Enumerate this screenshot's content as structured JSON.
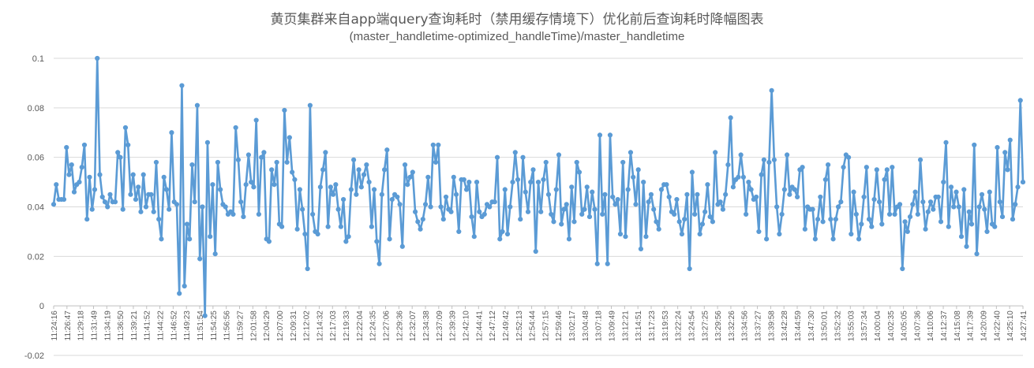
{
  "chart_data": {
    "type": "line",
    "title": "黄页集群来自app端query查询耗时（禁用缓存情境下）优化前后查询耗时降幅图表",
    "subtitle": "(master_handletime-optimized_handleTime)/master_handletime",
    "xlabel": "",
    "ylabel": "",
    "ylim": [
      -0.02,
      0.1
    ],
    "yticks": [
      "-0.02",
      "0",
      "0.02",
      "0.04",
      "0.06",
      "0.08",
      "0.1"
    ],
    "grid": true,
    "legend": "none",
    "series_color": "#5B9BD5",
    "x_tick_labels": [
      "11:24:16",
      "11:26:47",
      "11:29:18",
      "11:31:49",
      "11:34:19",
      "11:36:50",
      "11:39:21",
      "11:41:52",
      "11:44:22",
      "11:46:52",
      "11:49:23",
      "11:51:54",
      "11:54:25",
      "11:56:56",
      "11:59:27",
      "12:01:58",
      "12:04:29",
      "12:07:00",
      "12:09:31",
      "12:12:02",
      "12:14:32",
      "12:17:03",
      "12:19:33",
      "12:22:04",
      "12:24:35",
      "12:27:06",
      "12:29:36",
      "12:32:07",
      "12:34:38",
      "12:37:09",
      "12:39:39",
      "12:42:10",
      "12:44:41",
      "12:47:12",
      "12:49:42",
      "12:52:13",
      "12:54:44",
      "12:57:15",
      "12:59:46",
      "13:02:17",
      "13:04:48",
      "13:07:18",
      "13:09:49",
      "13:12:21",
      "13:14:51",
      "13:17:23",
      "13:19:53",
      "13:22:24",
      "13:24:54",
      "13:27:25",
      "13:29:56",
      "13:32:26",
      "13:34:56",
      "13:37:27",
      "13:39:58",
      "13:42:28",
      "13:44:59",
      "13:47:30",
      "13:50:01",
      "13:52:32",
      "13:55:03",
      "13:57:34",
      "14:00:04",
      "14:02:35",
      "14:05:05",
      "14:07:36",
      "14:10:06",
      "14:12:37",
      "14:15:08",
      "14:17:39",
      "14:20:09",
      "14:22:40",
      "14:25:10",
      "14:27:41"
    ],
    "values": [
      0.041,
      0.049,
      0.043,
      0.043,
      0.043,
      0.064,
      0.053,
      0.057,
      0.046,
      0.049,
      0.05,
      0.056,
      0.065,
      0.035,
      0.052,
      0.039,
      0.047,
      0.1,
      0.053,
      0.044,
      0.042,
      0.04,
      0.045,
      0.042,
      0.042,
      0.062,
      0.06,
      0.039,
      0.072,
      0.065,
      0.045,
      0.053,
      0.043,
      0.048,
      0.038,
      0.053,
      0.04,
      0.045,
      0.045,
      0.038,
      0.058,
      0.035,
      0.027,
      0.052,
      0.047,
      0.039,
      0.07,
      0.042,
      0.041,
      0.005,
      0.089,
      0.008,
      0.033,
      0.027,
      0.057,
      0.042,
      0.081,
      0.019,
      0.04,
      -0.004,
      0.066,
      0.028,
      0.049,
      0.021,
      0.058,
      0.047,
      0.041,
      0.04,
      0.037,
      0.038,
      0.037,
      0.072,
      0.059,
      0.042,
      0.036,
      0.049,
      0.061,
      0.05,
      0.048,
      0.075,
      0.037,
      0.06,
      0.062,
      0.027,
      0.026,
      0.055,
      0.049,
      0.058,
      0.033,
      0.032,
      0.079,
      0.058,
      0.068,
      0.054,
      0.051,
      0.031,
      0.047,
      0.039,
      0.029,
      0.015,
      0.081,
      0.037,
      0.03,
      0.029,
      0.048,
      0.055,
      0.062,
      0.032,
      0.048,
      0.045,
      0.049,
      0.039,
      0.032,
      0.043,
      0.026,
      0.028,
      0.047,
      0.059,
      0.045,
      0.055,
      0.048,
      0.053,
      0.057,
      0.05,
      0.032,
      0.047,
      0.026,
      0.017,
      0.045,
      0.055,
      0.063,
      0.027,
      0.043,
      0.045,
      0.044,
      0.041,
      0.024,
      0.057,
      0.049,
      0.052,
      0.054,
      0.038,
      0.034,
      0.031,
      0.035,
      0.041,
      0.052,
      0.04,
      0.065,
      0.058,
      0.065,
      0.04,
      0.035,
      0.044,
      0.039,
      0.038,
      0.052,
      0.045,
      0.03,
      0.051,
      0.051,
      0.047,
      0.05,
      0.036,
      0.028,
      0.05,
      0.038,
      0.036,
      0.037,
      0.041,
      0.04,
      0.042,
      0.042,
      0.06,
      0.027,
      0.03,
      0.047,
      0.029,
      0.04,
      0.05,
      0.062,
      0.051,
      0.035,
      0.06,
      0.046,
      0.038,
      0.05,
      0.055,
      0.022,
      0.05,
      0.038,
      0.051,
      0.058,
      0.045,
      0.037,
      0.034,
      0.047,
      0.061,
      0.033,
      0.039,
      0.041,
      0.027,
      0.048,
      0.034,
      0.058,
      0.054,
      0.037,
      0.039,
      0.048,
      0.036,
      0.046,
      0.039,
      0.017,
      0.069,
      0.037,
      0.045,
      0.017,
      0.069,
      0.044,
      0.041,
      0.043,
      0.029,
      0.058,
      0.028,
      0.047,
      0.062,
      0.052,
      0.041,
      0.055,
      0.023,
      0.05,
      0.028,
      0.042,
      0.045,
      0.039,
      0.034,
      0.031,
      0.047,
      0.049,
      0.049,
      0.044,
      0.038,
      0.037,
      0.043,
      0.034,
      0.029,
      0.035,
      0.045,
      0.015,
      0.054,
      0.037,
      0.045,
      0.029,
      0.033,
      0.038,
      0.049,
      0.036,
      0.034,
      0.062,
      0.041,
      0.042,
      0.039,
      0.045,
      0.057,
      0.076,
      0.048,
      0.051,
      0.052,
      0.061,
      0.052,
      0.037,
      0.05,
      0.047,
      0.043,
      0.044,
      0.03,
      0.053,
      0.059,
      0.027,
      0.058,
      0.087,
      0.059,
      0.04,
      0.029,
      0.037,
      0.047,
      0.061,
      0.045,
      0.048,
      0.047,
      0.044,
      0.055,
      0.056,
      0.031,
      0.04,
      0.039,
      0.039,
      0.027,
      0.035,
      0.044,
      0.034,
      0.051,
      0.057,
      0.035,
      0.027,
      0.035,
      0.04,
      0.042,
      0.056,
      0.061,
      0.06,
      0.029,
      0.046,
      0.037,
      0.027,
      0.033,
      0.044,
      0.056,
      0.035,
      0.032,
      0.043,
      0.055,
      0.042,
      0.033,
      0.051,
      0.055,
      0.037,
      0.056,
      0.037,
      0.04,
      0.041,
      0.015,
      0.034,
      0.03,
      0.036,
      0.041,
      0.046,
      0.037,
      0.059,
      0.042,
      0.031,
      0.038,
      0.042,
      0.039,
      0.044,
      0.044,
      0.034,
      0.05,
      0.066,
      0.032,
      0.048,
      0.04,
      0.046,
      0.04,
      0.028,
      0.047,
      0.024,
      0.038,
      0.033,
      0.065,
      0.021,
      0.04,
      0.045,
      0.039,
      0.03,
      0.046,
      0.033,
      0.032,
      0.064,
      0.042,
      0.036,
      0.062,
      0.055,
      0.067,
      0.035,
      0.041,
      0.048,
      0.083,
      0.05
    ]
  }
}
